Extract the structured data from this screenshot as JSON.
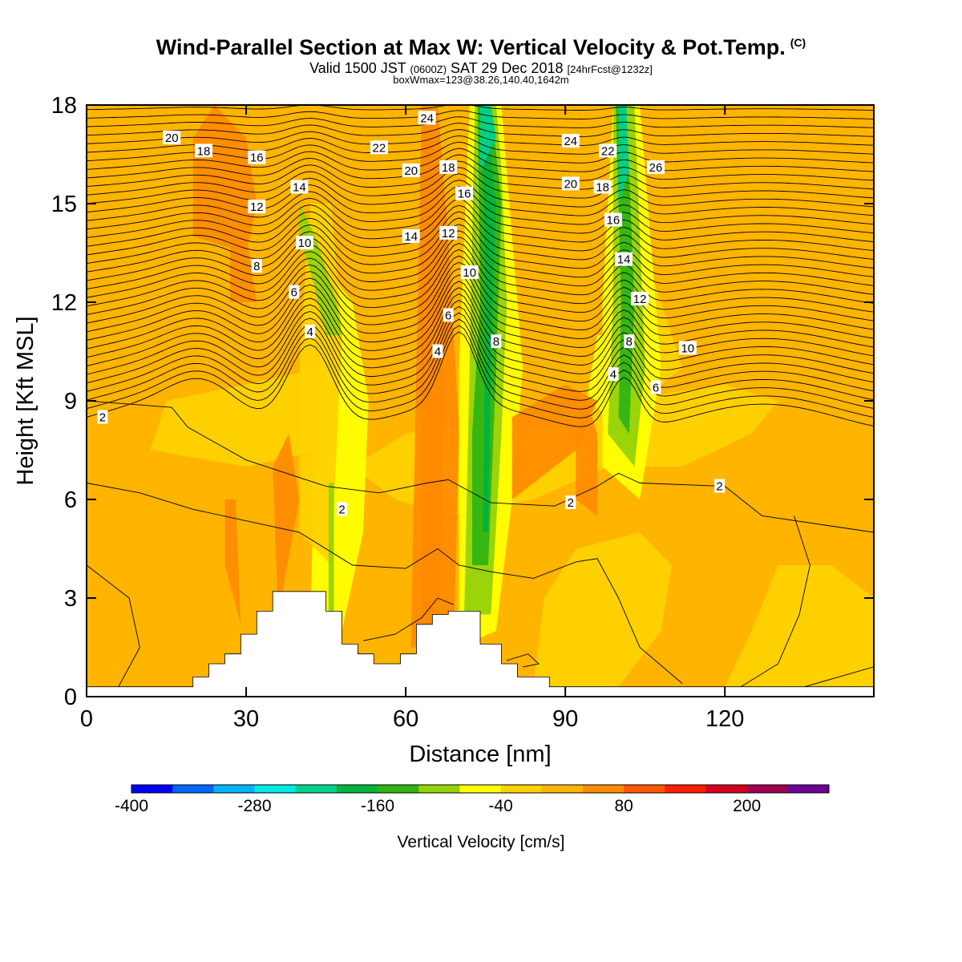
{
  "title": {
    "main": "Wind-Parallel Section at Max W: Vertical Velocity & Pot.Temp.",
    "copyright": "(C)",
    "valid_prefix": "Valid 1500 JST",
    "valid_utc": "(0600Z)",
    "valid_date": "SAT 29 Dec 2018",
    "forecast": "[24hrFcst@1232z]",
    "boxwmax": "boxWmax=123@38.26,140.40,1642m"
  },
  "chart_data": {
    "type": "heatmap",
    "xlabel": "Distance [nm]",
    "ylabel": "Height [Kft MSL]",
    "xlim": [
      0,
      148
    ],
    "ylim": [
      0,
      18
    ],
    "xticks": [
      0,
      30,
      60,
      90,
      120
    ],
    "yticks": [
      0,
      3,
      6,
      9,
      12,
      15,
      18
    ],
    "colorbar": {
      "label": "Vertical Velocity [cm/s]",
      "ticks": [
        -400,
        -280,
        -160,
        -40,
        80,
        200
      ],
      "levels": [
        -400,
        -360,
        -320,
        -280,
        -240,
        -200,
        -160,
        -120,
        -80,
        -40,
        0,
        40,
        80,
        120,
        160,
        200,
        240,
        280
      ],
      "colors": [
        "#0000ff",
        "#0064ff",
        "#00b4ff",
        "#00ebe6",
        "#00d28c",
        "#00b43c",
        "#32b414",
        "#96d20a",
        "#ffff00",
        "#ffd200",
        "#ffb400",
        "#ff8c00",
        "#ff5a00",
        "#ff1e00",
        "#d2001e",
        "#a00050",
        "#6e0096"
      ]
    },
    "theta_contour_labels": [
      {
        "label": "20",
        "x": 16,
        "y": 17.0
      },
      {
        "label": "18",
        "x": 22,
        "y": 16.6
      },
      {
        "label": "16",
        "x": 32,
        "y": 16.4
      },
      {
        "label": "14",
        "x": 40,
        "y": 15.5
      },
      {
        "label": "12",
        "x": 32,
        "y": 14.9
      },
      {
        "label": "10",
        "x": 41,
        "y": 13.8
      },
      {
        "label": "8",
        "x": 32,
        "y": 13.1
      },
      {
        "label": "6",
        "x": 39,
        "y": 12.3
      },
      {
        "label": "4",
        "x": 42,
        "y": 11.1
      },
      {
        "label": "2",
        "x": 3,
        "y": 8.5
      },
      {
        "label": "22",
        "x": 55,
        "y": 16.7
      },
      {
        "label": "24",
        "x": 64,
        "y": 17.6
      },
      {
        "label": "20",
        "x": 61,
        "y": 16.0
      },
      {
        "label": "18",
        "x": 68,
        "y": 16.1
      },
      {
        "label": "16",
        "x": 71,
        "y": 15.3
      },
      {
        "label": "14",
        "x": 61,
        "y": 14.0
      },
      {
        "label": "12",
        "x": 68,
        "y": 14.1
      },
      {
        "label": "10",
        "x": 72,
        "y": 12.9
      },
      {
        "label": "6",
        "x": 68,
        "y": 11.6
      },
      {
        "label": "4",
        "x": 66,
        "y": 10.5
      },
      {
        "label": "8",
        "x": 77,
        "y": 10.8
      },
      {
        "label": "24",
        "x": 91,
        "y": 16.9
      },
      {
        "label": "22",
        "x": 98,
        "y": 16.6
      },
      {
        "label": "26",
        "x": 107,
        "y": 16.1
      },
      {
        "label": "20",
        "x": 91,
        "y": 15.6
      },
      {
        "label": "18",
        "x": 97,
        "y": 15.5
      },
      {
        "label": "16",
        "x": 99,
        "y": 14.5
      },
      {
        "label": "14",
        "x": 101,
        "y": 13.3
      },
      {
        "label": "12",
        "x": 104,
        "y": 12.1
      },
      {
        "label": "8",
        "x": 102,
        "y": 10.8
      },
      {
        "label": "10",
        "x": 113,
        "y": 10.6
      },
      {
        "label": "4",
        "x": 99,
        "y": 9.8
      },
      {
        "label": "6",
        "x": 107,
        "y": 9.4
      },
      {
        "label": "2",
        "x": 48,
        "y": 5.7
      },
      {
        "label": "2",
        "x": 91,
        "y": 5.9
      },
      {
        "label": "2",
        "x": 119,
        "y": 6.4
      }
    ]
  }
}
